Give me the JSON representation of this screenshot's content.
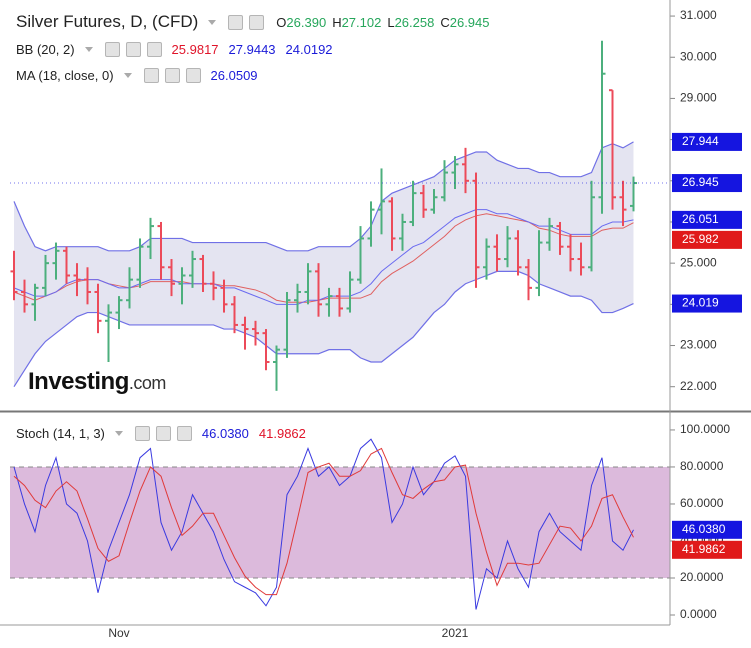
{
  "chart_data": [
    {
      "type": "ohlc",
      "title": "Silver Futures, D, (CFD)",
      "ohlc_header": [
        {
          "label": "O",
          "value": "26.390"
        },
        {
          "label": "H",
          "value": "27.102"
        },
        {
          "label": "L",
          "value": "26.258"
        },
        {
          "label": "C",
          "value": "26.945"
        }
      ],
      "indicators": [
        {
          "name": "BB (20, 2)",
          "values": [
            {
              "text": "25.9817",
              "color": "#e0142a"
            },
            {
              "text": "27.9443",
              "color": "#1b1bd8"
            },
            {
              "text": "24.0192",
              "color": "#1b1bd8"
            }
          ]
        },
        {
          "name": "MA (18, close, 0)",
          "values": [
            {
              "text": "26.0509",
              "color": "#1b1bd8"
            }
          ]
        }
      ],
      "watermark": {
        "main": "Investing",
        "suffix": ".com"
      },
      "categories": [
        null,
        null,
        null,
        null,
        null,
        null,
        null,
        null,
        null,
        null,
        "Nov",
        null,
        null,
        null,
        null,
        null,
        null,
        null,
        null,
        null,
        null,
        null,
        null,
        null,
        null,
        null,
        null,
        null,
        null,
        null,
        null,
        null,
        null,
        null,
        null,
        null,
        null,
        null,
        null,
        null,
        null,
        null,
        "2021",
        null,
        null,
        null,
        null,
        null,
        null,
        null,
        null,
        null,
        null,
        null,
        null,
        null,
        null,
        null,
        null,
        null
      ],
      "bars": [
        [
          24.8,
          25.3,
          24.1,
          24.3
        ],
        [
          24.3,
          24.6,
          23.8,
          24.0
        ],
        [
          24.0,
          24.5,
          23.6,
          24.4
        ],
        [
          24.4,
          25.2,
          24.2,
          25.0
        ],
        [
          25.0,
          25.5,
          24.6,
          25.3
        ],
        [
          25.3,
          25.4,
          24.5,
          24.7
        ],
        [
          24.7,
          25.0,
          24.2,
          24.6
        ],
        [
          24.6,
          24.9,
          24.0,
          24.3
        ],
        [
          24.3,
          24.5,
          23.3,
          23.6
        ],
        [
          23.6,
          24.0,
          22.6,
          23.8
        ],
        [
          23.8,
          24.2,
          23.4,
          24.1
        ],
        [
          24.1,
          24.9,
          23.9,
          24.6
        ],
        [
          24.6,
          25.6,
          24.4,
          25.4
        ],
        [
          25.4,
          26.1,
          25.1,
          25.9
        ],
        [
          25.9,
          26.0,
          24.6,
          24.9
        ],
        [
          24.9,
          25.1,
          24.2,
          24.5
        ],
        [
          24.5,
          24.9,
          24.0,
          24.7
        ],
        [
          24.7,
          25.3,
          24.4,
          25.1
        ],
        [
          25.1,
          25.2,
          24.3,
          24.5
        ],
        [
          24.5,
          24.8,
          24.1,
          24.4
        ],
        [
          24.4,
          24.6,
          23.8,
          24.0
        ],
        [
          24.0,
          24.2,
          23.3,
          23.5
        ],
        [
          23.5,
          23.7,
          22.9,
          23.4
        ],
        [
          23.4,
          23.6,
          23.0,
          23.3
        ],
        [
          23.3,
          23.4,
          22.4,
          22.6
        ],
        [
          22.6,
          23.0,
          21.9,
          22.9
        ],
        [
          22.9,
          24.3,
          22.7,
          24.1
        ],
        [
          24.1,
          24.5,
          23.8,
          24.3
        ],
        [
          24.3,
          25.0,
          24.0,
          24.8
        ],
        [
          24.8,
          25.0,
          23.7,
          24.0
        ],
        [
          24.0,
          24.4,
          23.7,
          24.2
        ],
        [
          24.2,
          24.4,
          23.7,
          23.9
        ],
        [
          23.9,
          24.8,
          23.8,
          24.6
        ],
        [
          24.6,
          25.9,
          24.5,
          25.6
        ],
        [
          25.6,
          26.5,
          25.4,
          26.3
        ],
        [
          26.3,
          27.3,
          25.7,
          26.5
        ],
        [
          26.5,
          26.6,
          25.3,
          25.6
        ],
        [
          25.6,
          26.2,
          25.3,
          26.0
        ],
        [
          26.0,
          27.0,
          25.9,
          26.7
        ],
        [
          26.7,
          26.9,
          26.1,
          26.3
        ],
        [
          26.3,
          26.8,
          26.2,
          26.6
        ],
        [
          26.6,
          27.5,
          26.5,
          27.2
        ],
        [
          27.2,
          27.6,
          26.8,
          27.4
        ],
        [
          27.4,
          27.8,
          26.7,
          27.0
        ],
        [
          27.0,
          27.2,
          24.4,
          24.9
        ],
        [
          24.9,
          25.6,
          24.6,
          25.4
        ],
        [
          25.4,
          25.7,
          24.8,
          25.1
        ],
        [
          25.1,
          25.9,
          24.9,
          25.6
        ],
        [
          25.6,
          25.8,
          24.7,
          24.9
        ],
        [
          24.9,
          25.1,
          24.1,
          24.4
        ],
        [
          24.4,
          25.8,
          24.2,
          25.5
        ],
        [
          25.5,
          26.1,
          25.3,
          25.9
        ],
        [
          25.9,
          26.0,
          25.2,
          25.4
        ],
        [
          25.4,
          25.7,
          24.8,
          25.1
        ],
        [
          25.1,
          25.5,
          24.7,
          24.9
        ],
        [
          24.9,
          27.0,
          24.8,
          26.6
        ],
        [
          26.6,
          30.4,
          26.2,
          29.6
        ],
        [
          29.2,
          29.2,
          26.3,
          26.6
        ],
        [
          26.6,
          27.0,
          25.9,
          26.3
        ],
        [
          26.39,
          27.102,
          26.258,
          26.945
        ]
      ],
      "up_color": "#4caf7d",
      "down_color": "#ec4a59",
      "bb": {
        "upper": [
          26.5,
          25.9,
          25.4,
          25.3,
          25.4,
          25.4,
          25.4,
          25.4,
          25.4,
          25.3,
          25.3,
          25.3,
          25.4,
          25.6,
          25.6,
          25.6,
          25.6,
          25.5,
          25.5,
          25.5,
          25.5,
          25.5,
          25.5,
          25.5,
          25.5,
          25.4,
          25.3,
          25.3,
          25.3,
          25.4,
          25.4,
          25.4,
          25.4,
          25.6,
          25.9,
          26.5,
          26.7,
          26.8,
          26.9,
          27.0,
          27.1,
          27.3,
          27.5,
          27.6,
          27.7,
          27.7,
          27.5,
          27.4,
          27.3,
          27.3,
          27.2,
          27.2,
          27.1,
          27.1,
          27.1,
          27.2,
          27.8,
          27.9,
          27.8,
          27.944
        ],
        "basis": [
          24.3,
          24.2,
          24.1,
          24.2,
          24.3,
          24.45,
          24.55,
          24.6,
          24.6,
          24.5,
          24.45,
          24.4,
          24.45,
          24.55,
          24.55,
          24.55,
          24.55,
          24.5,
          24.5,
          24.5,
          24.45,
          24.45,
          24.4,
          24.35,
          24.25,
          24.1,
          24.05,
          24.05,
          24.05,
          24.1,
          24.15,
          24.15,
          24.15,
          24.15,
          24.25,
          24.55,
          24.75,
          24.9,
          25.05,
          25.25,
          25.45,
          25.65,
          25.9,
          26.05,
          26.15,
          26.2,
          26.15,
          26.1,
          26.05,
          26.0,
          25.85,
          25.8,
          25.7,
          25.65,
          25.65,
          25.65,
          25.8,
          25.85,
          25.85,
          25.9817
        ],
        "lower": [
          22.0,
          22.4,
          22.8,
          23.1,
          23.3,
          23.5,
          23.7,
          23.8,
          23.8,
          23.7,
          23.6,
          23.5,
          23.5,
          23.5,
          23.5,
          23.5,
          23.5,
          23.5,
          23.5,
          23.5,
          23.4,
          23.4,
          23.3,
          23.2,
          23.0,
          22.8,
          22.8,
          22.8,
          22.8,
          22.8,
          22.9,
          22.9,
          22.9,
          22.7,
          22.6,
          22.6,
          22.8,
          23.0,
          23.2,
          23.5,
          23.8,
          24.0,
          24.3,
          24.5,
          24.6,
          24.7,
          24.8,
          24.8,
          24.8,
          24.7,
          24.5,
          24.4,
          24.3,
          24.2,
          24.2,
          24.1,
          23.8,
          23.8,
          23.9,
          24.019
        ],
        "band_color": "#7070e6",
        "basis_color": "#e06060",
        "fill": "#e4e4f1"
      },
      "ma": {
        "values": [
          24.4,
          24.3,
          24.2,
          24.2,
          24.3,
          24.5,
          24.6,
          24.6,
          24.6,
          24.5,
          24.4,
          24.4,
          24.5,
          24.6,
          24.6,
          24.6,
          24.5,
          24.5,
          24.5,
          24.5,
          24.4,
          24.4,
          24.3,
          24.2,
          24.1,
          24.0,
          24.0,
          24.0,
          24.1,
          24.1,
          24.2,
          24.2,
          24.2,
          24.3,
          24.5,
          24.8,
          25.0,
          25.2,
          25.4,
          25.5,
          25.7,
          25.9,
          26.1,
          26.2,
          26.3,
          26.3,
          26.2,
          26.2,
          26.1,
          26.0,
          25.9,
          25.9,
          25.8,
          25.7,
          25.7,
          25.7,
          25.9,
          26.0,
          26.0,
          26.0509
        ],
        "color": "#6b6bf0"
      },
      "ylim": [
        21.41,
        31.39
      ],
      "yticks": [
        {
          "value": 22,
          "label": "22.000"
        },
        {
          "value": 23,
          "label": "23.000"
        },
        {
          "value": 24,
          "label": "24.000"
        },
        {
          "value": 25,
          "label": "25.000"
        },
        {
          "value": 26,
          "label": "26.000"
        },
        {
          "value": 27,
          "label": "27.000"
        },
        {
          "value": 28,
          "label": "28.000"
        },
        {
          "value": 29,
          "label": "29.000"
        },
        {
          "value": 30,
          "label": "30.000"
        },
        {
          "value": 31,
          "label": "31.000"
        }
      ],
      "price_labels": [
        {
          "value": 27.944,
          "label": "27.944",
          "color": "#1515e0"
        },
        {
          "value": 26.945,
          "label": "26.945",
          "color": "#1515e0",
          "line": true
        },
        {
          "value": 26.051,
          "label": "26.051",
          "color": "#1515e0"
        },
        {
          "value": 25.982,
          "label": "25.982",
          "color": "#e01a1a"
        },
        {
          "value": 24.019,
          "label": "24.019",
          "color": "#1515e0"
        }
      ],
      "grid": false
    },
    {
      "type": "line",
      "title": "Stoch (14, 1, 3)",
      "header_values": [
        {
          "text": "46.0380",
          "color": "#1b1bd8"
        },
        {
          "text": "41.9862",
          "color": "#e0142a"
        }
      ],
      "series": [
        {
          "color": "#3a3ae0",
          "values": [
            80,
            60,
            45,
            70,
            85,
            60,
            55,
            40,
            12,
            35,
            50,
            65,
            85,
            90,
            50,
            35,
            45,
            65,
            55,
            45,
            30,
            18,
            15,
            12,
            5,
            15,
            65,
            75,
            90,
            75,
            80,
            70,
            75,
            90,
            95,
            85,
            50,
            60,
            80,
            65,
            72,
            82,
            86,
            75,
            3,
            25,
            20,
            40,
            25,
            15,
            45,
            55,
            45,
            40,
            35,
            70,
            85,
            40,
            35,
            46.038
          ]
        },
        {
          "color": "#e03a3a",
          "values": [
            75,
            70,
            62,
            58,
            67,
            72,
            67,
            52,
            36,
            29,
            32,
            50,
            67,
            80,
            75,
            58,
            43,
            48,
            55,
            55,
            43,
            31,
            21,
            15,
            11,
            11,
            28,
            52,
            77,
            80,
            82,
            75,
            75,
            78,
            87,
            90,
            77,
            65,
            63,
            68,
            72,
            73,
            80,
            81,
            55,
            34,
            16,
            28,
            28,
            27,
            28,
            38,
            48,
            47,
            40,
            48,
            63,
            65,
            53,
            41.9862
          ]
        }
      ],
      "band": [
        20,
        80
      ],
      "band_color": "#dcbadc",
      "ylim": [
        -5.4,
        109.7
      ],
      "yticks": [
        {
          "value": 0,
          "label": "0.0000"
        },
        {
          "value": 20,
          "label": "20.0000"
        },
        {
          "value": 40,
          "label": "40.0000"
        },
        {
          "value": 60,
          "label": "60.0000"
        },
        {
          "value": 80,
          "label": "80.0000"
        },
        {
          "value": 100,
          "label": "100.0000"
        }
      ],
      "price_labels": [
        {
          "value": 46.038,
          "label": "46.0380",
          "color": "#1515e0"
        },
        {
          "value": 41.9862,
          "label": "41.9862",
          "color": "#e01a1a"
        }
      ],
      "grid": false
    }
  ]
}
